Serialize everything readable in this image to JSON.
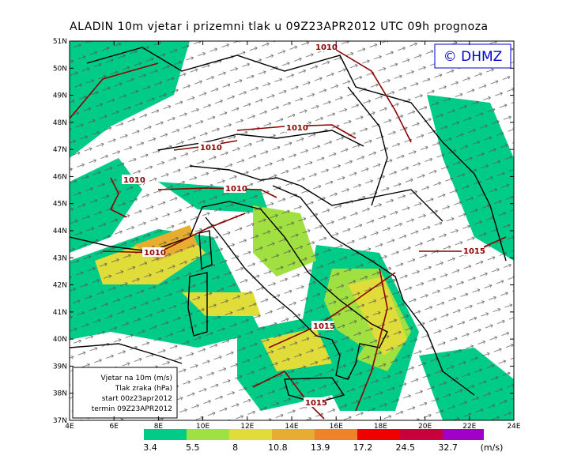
{
  "title": "ALADIN 10m vjetar i prizemni tlak u 09Z23APR2012 UTC 09h prognoza",
  "logo": "© DHMZ",
  "lat_labels": [
    "51N",
    "50N",
    "49N",
    "48N",
    "47N",
    "46N",
    "45N",
    "44N",
    "43N",
    "42N",
    "41N",
    "40N",
    "39N",
    "38N",
    "37N"
  ],
  "lon_labels": [
    "4E",
    "6E",
    "8E",
    "10E",
    "12E",
    "14E",
    "16E",
    "18E",
    "20E",
    "22E",
    "24E"
  ],
  "legend_box": [
    "Vjetar na 10m (m/s)",
    "Tlak zraka (hPa)",
    "start 00z23apr2012",
    "termin 09Z23APR2012"
  ],
  "isobars": [
    "1010",
    "1010",
    "1010",
    "1010",
    "1010",
    "1010",
    "1015",
    "1015",
    "1015"
  ],
  "colorbar": {
    "labels": [
      "3.4",
      "5.5",
      "8",
      "10.8",
      "13.9",
      "17.2",
      "24.5",
      "32.7"
    ],
    "unit": "(m/s)"
  }
}
